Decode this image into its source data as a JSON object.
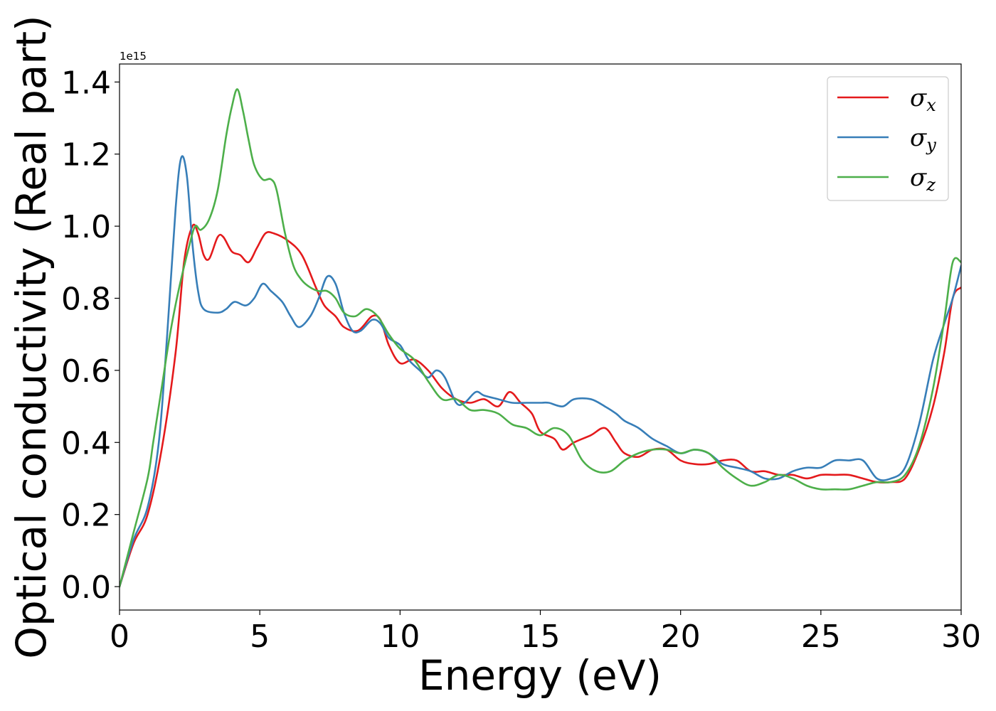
{
  "chart_data": {
    "type": "line",
    "title": "",
    "xlabel": "Energy (eV)",
    "ylabel": "Optical conductivity (Real part)",
    "y_offset_label": "1e15",
    "xlim": [
      0,
      30
    ],
    "ylim": [
      -0.065,
      1.45
    ],
    "x_ticks": [
      0,
      5,
      10,
      15,
      20,
      25,
      30
    ],
    "y_ticks": [
      0.0,
      0.2,
      0.4,
      0.6,
      0.8,
      1.0,
      1.2,
      1.4
    ],
    "x_tick_labels": [
      "0",
      "5",
      "10",
      "15",
      "20",
      "25",
      "30"
    ],
    "y_tick_labels": [
      "0.0",
      "0.2",
      "0.4",
      "0.6",
      "0.8",
      "1.0",
      "1.2",
      "1.4"
    ],
    "grid": false,
    "legend_position": "top-right",
    "series": [
      {
        "name": "σx",
        "symbol": "σ",
        "subscript": "x",
        "color": "#e41a1c",
        "points": [
          [
            0,
            0.0
          ],
          [
            0.5,
            0.12
          ],
          [
            1.0,
            0.2
          ],
          [
            1.5,
            0.38
          ],
          [
            2.0,
            0.65
          ],
          [
            2.3,
            0.9
          ],
          [
            2.6,
            1.0
          ],
          [
            2.8,
            0.98
          ],
          [
            3.0,
            0.92
          ],
          [
            3.2,
            0.91
          ],
          [
            3.5,
            0.97
          ],
          [
            3.7,
            0.97
          ],
          [
            4.0,
            0.93
          ],
          [
            4.3,
            0.92
          ],
          [
            4.6,
            0.9
          ],
          [
            4.9,
            0.94
          ],
          [
            5.2,
            0.98
          ],
          [
            5.5,
            0.98
          ],
          [
            6.0,
            0.96
          ],
          [
            6.5,
            0.92
          ],
          [
            7.0,
            0.83
          ],
          [
            7.3,
            0.78
          ],
          [
            7.7,
            0.75
          ],
          [
            8.0,
            0.72
          ],
          [
            8.5,
            0.71
          ],
          [
            9.0,
            0.75
          ],
          [
            9.3,
            0.74
          ],
          [
            9.6,
            0.67
          ],
          [
            10.0,
            0.62
          ],
          [
            10.5,
            0.63
          ],
          [
            11.0,
            0.6
          ],
          [
            11.5,
            0.55
          ],
          [
            12.0,
            0.52
          ],
          [
            12.5,
            0.51
          ],
          [
            13.0,
            0.52
          ],
          [
            13.5,
            0.5
          ],
          [
            13.9,
            0.54
          ],
          [
            14.3,
            0.51
          ],
          [
            14.7,
            0.48
          ],
          [
            15.0,
            0.43
          ],
          [
            15.5,
            0.41
          ],
          [
            15.8,
            0.38
          ],
          [
            16.2,
            0.4
          ],
          [
            16.8,
            0.42
          ],
          [
            17.3,
            0.44
          ],
          [
            17.7,
            0.4
          ],
          [
            18.0,
            0.37
          ],
          [
            18.5,
            0.36
          ],
          [
            19.0,
            0.38
          ],
          [
            19.5,
            0.38
          ],
          [
            20.0,
            0.35
          ],
          [
            20.5,
            0.34
          ],
          [
            21.0,
            0.34
          ],
          [
            21.5,
            0.35
          ],
          [
            22.0,
            0.35
          ],
          [
            22.5,
            0.32
          ],
          [
            23.0,
            0.32
          ],
          [
            23.5,
            0.31
          ],
          [
            24.0,
            0.31
          ],
          [
            24.5,
            0.3
          ],
          [
            25.0,
            0.31
          ],
          [
            25.5,
            0.31
          ],
          [
            26.0,
            0.31
          ],
          [
            26.5,
            0.3
          ],
          [
            27.0,
            0.29
          ],
          [
            27.5,
            0.29
          ],
          [
            28.0,
            0.3
          ],
          [
            28.5,
            0.38
          ],
          [
            29.0,
            0.5
          ],
          [
            29.4,
            0.65
          ],
          [
            29.7,
            0.8
          ],
          [
            30.0,
            0.83
          ]
        ]
      },
      {
        "name": "σy",
        "symbol": "σ",
        "subscript": "y",
        "color": "#377eb8",
        "points": [
          [
            0,
            0.0
          ],
          [
            0.5,
            0.13
          ],
          [
            1.0,
            0.22
          ],
          [
            1.4,
            0.4
          ],
          [
            1.7,
            0.7
          ],
          [
            2.0,
            1.05
          ],
          [
            2.2,
            1.19
          ],
          [
            2.4,
            1.14
          ],
          [
            2.6,
            0.95
          ],
          [
            2.8,
            0.82
          ],
          [
            3.0,
            0.77
          ],
          [
            3.5,
            0.76
          ],
          [
            3.8,
            0.77
          ],
          [
            4.1,
            0.79
          ],
          [
            4.5,
            0.78
          ],
          [
            4.8,
            0.8
          ],
          [
            5.1,
            0.84
          ],
          [
            5.4,
            0.82
          ],
          [
            5.8,
            0.79
          ],
          [
            6.1,
            0.75
          ],
          [
            6.4,
            0.72
          ],
          [
            6.8,
            0.75
          ],
          [
            7.1,
            0.8
          ],
          [
            7.4,
            0.86
          ],
          [
            7.7,
            0.84
          ],
          [
            8.0,
            0.76
          ],
          [
            8.3,
            0.71
          ],
          [
            8.6,
            0.71
          ],
          [
            9.0,
            0.74
          ],
          [
            9.3,
            0.73
          ],
          [
            9.6,
            0.69
          ],
          [
            10.0,
            0.67
          ],
          [
            10.3,
            0.63
          ],
          [
            10.7,
            0.6
          ],
          [
            11.0,
            0.58
          ],
          [
            11.3,
            0.6
          ],
          [
            11.6,
            0.58
          ],
          [
            12.0,
            0.51
          ],
          [
            12.3,
            0.51
          ],
          [
            12.7,
            0.54
          ],
          [
            13.0,
            0.53
          ],
          [
            13.5,
            0.52
          ],
          [
            14.0,
            0.51
          ],
          [
            14.5,
            0.51
          ],
          [
            15.0,
            0.51
          ],
          [
            15.3,
            0.51
          ],
          [
            15.8,
            0.5
          ],
          [
            16.2,
            0.52
          ],
          [
            16.8,
            0.52
          ],
          [
            17.3,
            0.5
          ],
          [
            17.7,
            0.48
          ],
          [
            18.0,
            0.46
          ],
          [
            18.5,
            0.44
          ],
          [
            19.0,
            0.41
          ],
          [
            19.5,
            0.39
          ],
          [
            20.0,
            0.37
          ],
          [
            20.5,
            0.38
          ],
          [
            21.0,
            0.37
          ],
          [
            21.5,
            0.34
          ],
          [
            22.0,
            0.33
          ],
          [
            22.5,
            0.32
          ],
          [
            23.0,
            0.3
          ],
          [
            23.5,
            0.3
          ],
          [
            24.0,
            0.32
          ],
          [
            24.5,
            0.33
          ],
          [
            25.0,
            0.33
          ],
          [
            25.5,
            0.35
          ],
          [
            26.0,
            0.35
          ],
          [
            26.5,
            0.35
          ],
          [
            27.0,
            0.3
          ],
          [
            27.5,
            0.3
          ],
          [
            28.0,
            0.33
          ],
          [
            28.5,
            0.45
          ],
          [
            29.0,
            0.63
          ],
          [
            29.4,
            0.73
          ],
          [
            29.7,
            0.8
          ],
          [
            30.0,
            0.89
          ]
        ]
      },
      {
        "name": "σz",
        "symbol": "σ",
        "subscript": "z",
        "color": "#4daf4a",
        "points": [
          [
            0,
            0.0
          ],
          [
            0.5,
            0.15
          ],
          [
            1.0,
            0.3
          ],
          [
            1.2,
            0.4
          ],
          [
            1.5,
            0.55
          ],
          [
            1.8,
            0.7
          ],
          [
            2.1,
            0.82
          ],
          [
            2.5,
            0.95
          ],
          [
            2.7,
            1.0
          ],
          [
            2.9,
            0.99
          ],
          [
            3.2,
            1.02
          ],
          [
            3.5,
            1.1
          ],
          [
            3.8,
            1.25
          ],
          [
            4.0,
            1.33
          ],
          [
            4.2,
            1.38
          ],
          [
            4.4,
            1.32
          ],
          [
            4.6,
            1.24
          ],
          [
            4.8,
            1.17
          ],
          [
            5.1,
            1.13
          ],
          [
            5.4,
            1.13
          ],
          [
            5.6,
            1.1
          ],
          [
            5.9,
            0.98
          ],
          [
            6.2,
            0.89
          ],
          [
            6.5,
            0.85
          ],
          [
            6.8,
            0.83
          ],
          [
            7.1,
            0.82
          ],
          [
            7.4,
            0.82
          ],
          [
            7.7,
            0.8
          ],
          [
            8.0,
            0.76
          ],
          [
            8.4,
            0.75
          ],
          [
            8.8,
            0.77
          ],
          [
            9.2,
            0.75
          ],
          [
            9.6,
            0.7
          ],
          [
            10.0,
            0.66
          ],
          [
            10.5,
            0.63
          ],
          [
            11.0,
            0.57
          ],
          [
            11.5,
            0.52
          ],
          [
            12.0,
            0.52
          ],
          [
            12.5,
            0.49
          ],
          [
            13.0,
            0.49
          ],
          [
            13.5,
            0.48
          ],
          [
            14.0,
            0.45
          ],
          [
            14.5,
            0.44
          ],
          [
            15.0,
            0.42
          ],
          [
            15.5,
            0.44
          ],
          [
            16.0,
            0.42
          ],
          [
            16.5,
            0.35
          ],
          [
            17.0,
            0.32
          ],
          [
            17.5,
            0.32
          ],
          [
            18.0,
            0.35
          ],
          [
            18.5,
            0.37
          ],
          [
            19.0,
            0.38
          ],
          [
            19.5,
            0.38
          ],
          [
            20.0,
            0.37
          ],
          [
            20.5,
            0.38
          ],
          [
            21.0,
            0.37
          ],
          [
            21.5,
            0.33
          ],
          [
            22.0,
            0.3
          ],
          [
            22.5,
            0.28
          ],
          [
            23.0,
            0.29
          ],
          [
            23.5,
            0.31
          ],
          [
            24.0,
            0.3
          ],
          [
            24.5,
            0.28
          ],
          [
            25.0,
            0.27
          ],
          [
            25.5,
            0.27
          ],
          [
            26.0,
            0.27
          ],
          [
            26.5,
            0.28
          ],
          [
            27.0,
            0.29
          ],
          [
            27.5,
            0.29
          ],
          [
            28.0,
            0.31
          ],
          [
            28.5,
            0.39
          ],
          [
            29.0,
            0.55
          ],
          [
            29.4,
            0.74
          ],
          [
            29.7,
            0.9
          ],
          [
            30.0,
            0.9
          ]
        ]
      }
    ]
  }
}
